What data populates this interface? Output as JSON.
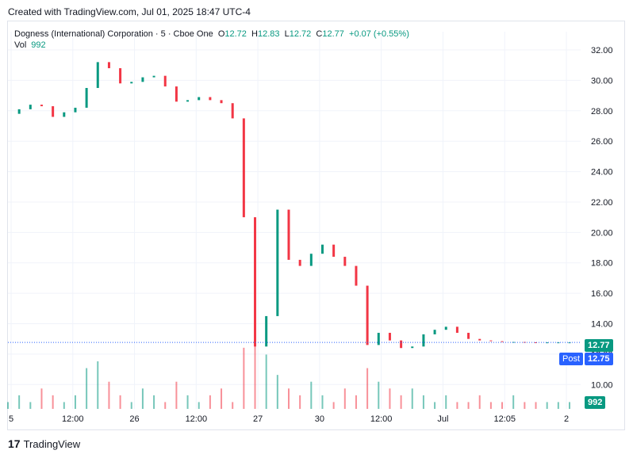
{
  "caption": "Created with TradingView.com, Jul 01, 2025 18:47 UTC-4",
  "legend": {
    "symbol": "Dogness (International) Corporation · 5 · Cboe One",
    "open_label": "O",
    "open": "12.72",
    "high_label": "H",
    "high": "12.83",
    "low_label": "L",
    "low": "12.72",
    "close_label": "C",
    "close": "12.77",
    "change": "+0.07 (+0.55%)",
    "vol_label": "Vol",
    "vol": "992"
  },
  "badges": {
    "last_price": "12.77",
    "post_label": "Post",
    "post_price": "12.75",
    "volume": "992"
  },
  "footer": {
    "brand": "TradingView",
    "logo": "17"
  },
  "colors": {
    "up": "#089981",
    "down": "#f23645",
    "grid": "#f0f3fa",
    "text": "#131722",
    "post": "#2962ff"
  },
  "chart_data": {
    "type": "line",
    "title": "Dogness (International) Corporation · 5 · Cboe One",
    "y_ticks": [
      "32.00",
      "30.00",
      "28.00",
      "26.00",
      "24.00",
      "22.00",
      "20.00",
      "18.00",
      "16.00",
      "14.00",
      "12.00",
      "10.00"
    ],
    "x_ticks": [
      "5",
      "12:00",
      "26",
      "12:00",
      "27",
      "30",
      "12:00",
      "Jul",
      "12:05",
      "2"
    ],
    "ylim": [
      8.4,
      33.2
    ],
    "x": [
      0,
      2,
      4,
      6,
      8,
      10,
      12,
      14,
      16,
      18,
      20,
      22,
      24,
      26,
      28,
      30,
      32,
      34,
      36,
      38,
      40,
      42,
      44,
      46,
      48,
      50,
      52,
      54,
      56,
      58,
      60,
      62,
      64,
      66,
      68,
      70,
      72,
      74,
      76,
      78,
      80,
      82,
      84,
      86,
      88,
      90,
      92,
      94,
      96,
      98,
      100
    ],
    "series": [
      {
        "values": [
          27.8,
          28.1,
          28.4,
          28.3,
          27.6,
          27.9,
          28.2,
          29.5,
          31.2,
          30.8,
          29.8,
          29.9,
          30.2,
          30.3,
          29.6,
          28.6,
          28.7,
          28.9,
          28.7,
          28.5,
          27.5,
          21.0,
          12.5,
          14.5,
          21.5,
          18.2,
          17.8,
          18.6,
          19.2,
          18.4,
          17.8,
          16.5,
          12.6,
          13.4,
          12.9,
          12.4,
          12.5,
          13.3,
          13.6,
          13.8,
          13.4,
          13.0,
          12.9,
          12.85,
          12.8,
          12.8,
          12.78,
          12.77,
          12.77,
          12.77,
          12.77
        ]
      }
    ],
    "volume": [
      1,
      2,
      1,
      3,
      2,
      1,
      2,
      6,
      7,
      4,
      2,
      1,
      3,
      2,
      1,
      4,
      2,
      1,
      2,
      3,
      1,
      9,
      14,
      8,
      5,
      3,
      2,
      4,
      2,
      1,
      3,
      2,
      6,
      4,
      3,
      2,
      3,
      2,
      1,
      2,
      1,
      1,
      2,
      1,
      1,
      2,
      1,
      1,
      1,
      1,
      1
    ],
    "last_price": 12.77,
    "post_price": 12.75,
    "grid": true
  }
}
